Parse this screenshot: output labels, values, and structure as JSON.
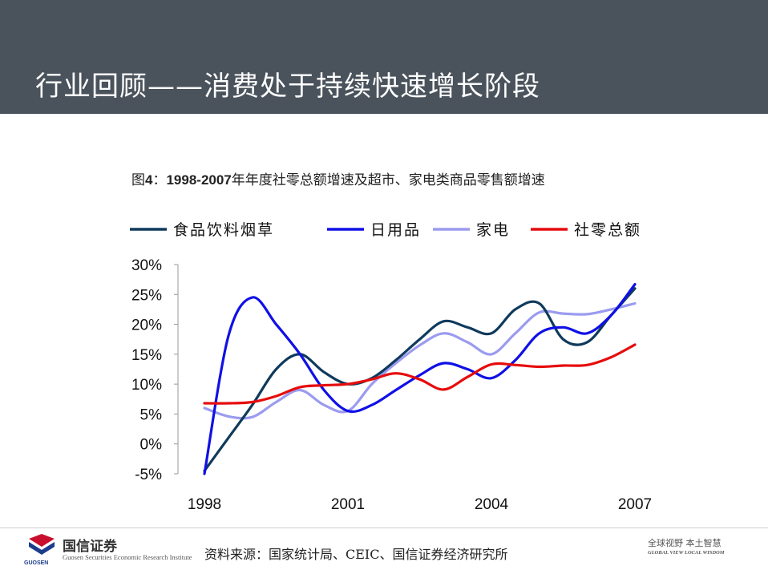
{
  "header": {
    "title": "行业回顾——消费处于持续快速增长阶段"
  },
  "figure": {
    "label_prefix": "图",
    "label_number": "4",
    "label_sep": "：",
    "range": "1998-2007",
    "caption_rest": "年年度社零总额增速及超市、家电类商品零售额增速"
  },
  "colors": {
    "header_bg": "#4a535c",
    "series_food": "#0f3a5c",
    "series_daily": "#1010e6",
    "series_appliance": "#9b9bf0",
    "series_retail": "#e60c0c"
  },
  "chart_data": {
    "type": "line",
    "title": "1998-2007年年度社零总额增速及超市、家电类商品零售额增速",
    "xlabel": "",
    "ylabel": "",
    "x_ticks": [
      "1998",
      "2001",
      "2004",
      "2007"
    ],
    "y_ticks": [
      "30%",
      "25%",
      "20%",
      "15%",
      "10%",
      "5%",
      "0%",
      "-5%"
    ],
    "ylim": [
      -5,
      30
    ],
    "xlim": [
      1998,
      2007
    ],
    "grid": false,
    "legend": "top",
    "series": [
      {
        "name": "食品饮料烟草",
        "color": "#0f3a5c",
        "x": [
          1998,
          1998.5,
          1999,
          1999.5,
          2000,
          2000.5,
          2001,
          2001.5,
          2002,
          2002.5,
          2003,
          2003.5,
          2004,
          2004.5,
          2005,
          2005.5,
          2006,
          2006.5,
          2007
        ],
        "y": [
          -4.5,
          1,
          6.5,
          12.5,
          15,
          12,
          10,
          11,
          14,
          17.5,
          20.5,
          19.5,
          18.5,
          22.5,
          23.5,
          17.5,
          17,
          21.5,
          26
        ]
      },
      {
        "name": "日用品",
        "color": "#1010e6",
        "x": [
          1998,
          1998.5,
          1999,
          1999.5,
          2000,
          2000.5,
          2001,
          2001.5,
          2002,
          2002.5,
          2003,
          2003.5,
          2004,
          2004.5,
          2005,
          2005.5,
          2006,
          2006.5,
          2007
        ],
        "y": [
          -5,
          18,
          24.5,
          20,
          15,
          9,
          5.5,
          6.5,
          9,
          11.5,
          13.5,
          12.5,
          11,
          14,
          18.5,
          19.5,
          18.5,
          21.5,
          26.7
        ]
      },
      {
        "name": "家电",
        "color": "#9b9bf0",
        "x": [
          1998,
          1998.5,
          1999,
          1999.5,
          2000,
          2000.5,
          2001,
          2001.5,
          2002,
          2002.5,
          2003,
          2003.5,
          2004,
          2004.5,
          2005,
          2005.5,
          2006,
          2006.5,
          2007
        ],
        "y": [
          6,
          4.6,
          4.5,
          7,
          9,
          6.5,
          5.5,
          10,
          13.5,
          16.5,
          18.5,
          17,
          15,
          18.5,
          22,
          21.8,
          21.7,
          22.5,
          23.5
        ]
      },
      {
        "name": "社零总额",
        "color": "#e60c0c",
        "x": [
          1998,
          1998.5,
          1999,
          1999.5,
          2000,
          2000.5,
          2001,
          2001.5,
          2002,
          2002.5,
          2003,
          2003.5,
          2004,
          2004.5,
          2005,
          2005.5,
          2006,
          2006.5,
          2007
        ],
        "y": [
          6.8,
          6.8,
          7,
          8,
          9.5,
          9.8,
          10,
          10.8,
          11.8,
          10.8,
          9.1,
          11.2,
          13.3,
          13.2,
          12.9,
          13.1,
          13.2,
          14.5,
          16.6
        ]
      }
    ]
  },
  "footer": {
    "logo_cn": "国信证券",
    "logo_en": "Guosen Securities Economic Research Institute",
    "source": "资料来源：国家统计局、CEIC、国信证券经济研究所",
    "slogan_cn": "全球视野 本土智慧",
    "slogan_en": "GLOBAL VIEW LOCAL WISDOM"
  }
}
